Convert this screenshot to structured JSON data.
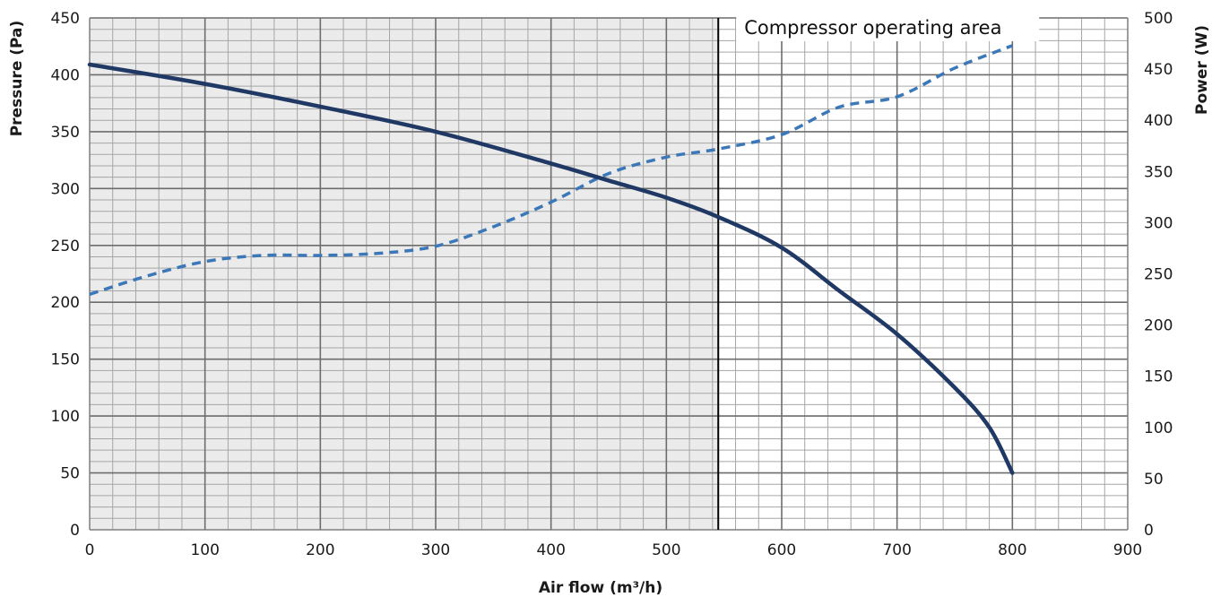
{
  "chart_data": {
    "type": "line",
    "title": "",
    "xlabel": "Air flow (m³/h)",
    "ylabel_left": "Pressure (Pa)",
    "ylabel_right": "Power (W)",
    "xlim": [
      0,
      900
    ],
    "ylim_left": [
      0,
      450
    ],
    "ylim_right": [
      0,
      500
    ],
    "x_ticks": [
      "0",
      "100",
      "200",
      "300",
      "400",
      "500",
      "600",
      "700",
      "800",
      "900"
    ],
    "y_left_ticks": [
      "0",
      "50",
      "100",
      "150",
      "200",
      "250",
      "300",
      "350",
      "400",
      "450"
    ],
    "y_right_ticks": [
      "0",
      "50",
      "100",
      "150",
      "200",
      "250",
      "300",
      "350",
      "400",
      "450",
      "500"
    ],
    "grid": true,
    "shaded_region": {
      "x_from": 0,
      "x_to": 545,
      "color": "#ebebeb"
    },
    "annotation": {
      "text": "Compressor operating area",
      "x": 545
    },
    "colors": {
      "pressure": "#1f3864",
      "power": "#3c78b8",
      "grid": "#a6a6a6",
      "axis": "#7f7f7f",
      "boundary": "#000000"
    },
    "series": [
      {
        "axis": "left",
        "style": "solid",
        "x": [
          0,
          100,
          200,
          300,
          400,
          450,
          500,
          545,
          600,
          650,
          700,
          750,
          780,
          800
        ],
        "values": [
          409,
          392,
          372,
          350,
          322,
          307,
          292,
          275,
          248,
          210,
          172,
          125,
          90,
          50
        ]
      },
      {
        "axis": "right",
        "style": "dashed",
        "x": [
          0,
          50,
          100,
          150,
          200,
          250,
          300,
          350,
          400,
          450,
          500,
          545,
          600,
          650,
          700,
          750,
          800
        ],
        "values": [
          230,
          248,
          262,
          268,
          268,
          270,
          277,
          296,
          320,
          348,
          364,
          372,
          386,
          413,
          423,
          451,
          473
        ]
      }
    ]
  }
}
